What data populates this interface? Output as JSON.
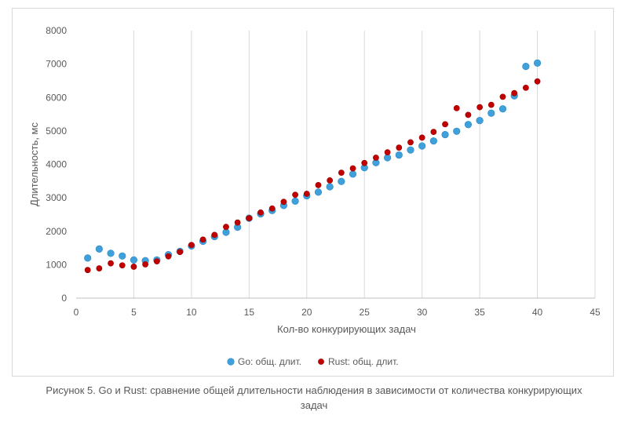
{
  "chart_data": {
    "type": "scatter",
    "xlabel": "Кол-во конкурирующих задач",
    "ylabel": "Длительность, мс",
    "xlim": [
      0,
      45
    ],
    "ylim": [
      0,
      8000
    ],
    "xticks": [
      0,
      5,
      10,
      15,
      20,
      25,
      30,
      35,
      40,
      45
    ],
    "yticks": [
      0,
      1000,
      2000,
      3000,
      4000,
      5000,
      6000,
      7000,
      8000
    ],
    "grid": "vertical",
    "legend": "bottom",
    "x": [
      1,
      2,
      3,
      4,
      5,
      6,
      7,
      8,
      9,
      10,
      11,
      12,
      13,
      14,
      15,
      16,
      17,
      18,
      19,
      20,
      21,
      22,
      23,
      24,
      25,
      26,
      27,
      28,
      29,
      30,
      31,
      32,
      33,
      34,
      35,
      36,
      37,
      38,
      39,
      40
    ],
    "series": [
      {
        "name": "Go: общ. длит.",
        "color": "#3fa1dc",
        "values": [
          1200,
          1470,
          1340,
          1260,
          1140,
          1120,
          1140,
          1300,
          1400,
          1560,
          1700,
          1840,
          1970,
          2120,
          2390,
          2520,
          2620,
          2770,
          2900,
          3060,
          3170,
          3330,
          3490,
          3710,
          3900,
          4050,
          4200,
          4280,
          4430,
          4550,
          4700,
          4890,
          4990,
          5190,
          5310,
          5530,
          5660,
          6050,
          6930,
          7030
        ]
      },
      {
        "name": "Rust: общ. длит.",
        "color": "#c00000",
        "values": [
          840,
          890,
          1040,
          980,
          940,
          1010,
          1100,
          1250,
          1380,
          1590,
          1750,
          1890,
          2130,
          2260,
          2390,
          2560,
          2680,
          2880,
          3090,
          3120,
          3380,
          3520,
          3750,
          3880,
          4040,
          4200,
          4360,
          4500,
          4660,
          4800,
          4970,
          5200,
          5680,
          5480,
          5710,
          5780,
          6020,
          6130,
          6290,
          6480
        ]
      }
    ]
  },
  "caption": {
    "line1": "Рисунок 5. Go и Rust: сравнение общей длительности наблюдения в зависимости от количества конкурирующих",
    "line2": "задач"
  }
}
